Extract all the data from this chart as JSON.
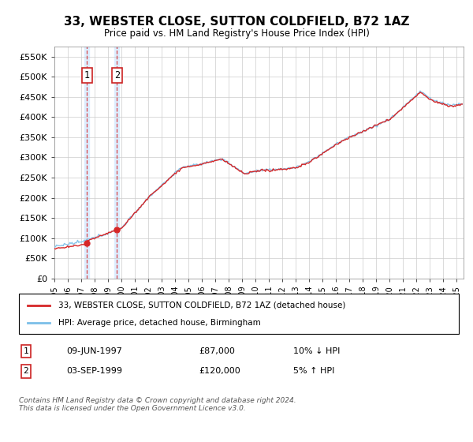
{
  "title": "33, WEBSTER CLOSE, SUTTON COLDFIELD, B72 1AZ",
  "subtitle": "Price paid vs. HM Land Registry's House Price Index (HPI)",
  "legend_line1": "33, WEBSTER CLOSE, SUTTON COLDFIELD, B72 1AZ (detached house)",
  "legend_line2": "HPI: Average price, detached house, Birmingham",
  "purchase1_date": "09-JUN-1997",
  "purchase1_price": 87000,
  "purchase1_hpi": "10% ↓ HPI",
  "purchase2_date": "03-SEP-1999",
  "purchase2_price": 120000,
  "purchase2_hpi": "5% ↑ HPI",
  "footnote": "Contains HM Land Registry data © Crown copyright and database right 2024.\nThis data is licensed under the Open Government Licence v3.0.",
  "hpi_color": "#7bbfe8",
  "price_color": "#d62728",
  "vline_color": "#d62728",
  "highlight_color": "#ddeeff",
  "ylim": [
    0,
    575000
  ],
  "yticks": [
    0,
    50000,
    100000,
    150000,
    200000,
    250000,
    300000,
    350000,
    400000,
    450000,
    500000,
    550000
  ],
  "xstart": 1995.0,
  "xend": 2025.5
}
